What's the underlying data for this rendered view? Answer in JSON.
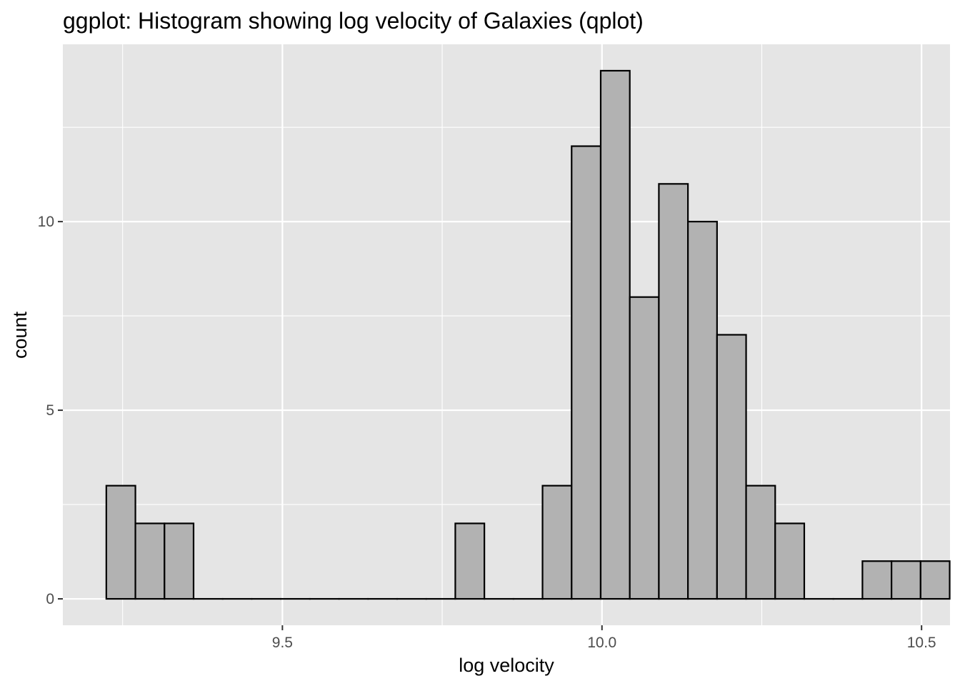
{
  "chart_data": {
    "type": "bar",
    "title": "ggplot: Histogram showing log velocity of Galaxies (qplot)",
    "xlabel": "log velocity",
    "ylabel": "count",
    "xlim": [
      9.1565,
      10.5445
    ],
    "ylim": [
      -0.7,
      14.7
    ],
    "x_ticks": [
      {
        "value": 9.5,
        "label": "9.5"
      },
      {
        "value": 10.0,
        "label": "10.0"
      },
      {
        "value": 10.5,
        "label": "10.5"
      }
    ],
    "y_ticks": [
      {
        "value": 0,
        "label": "0"
      },
      {
        "value": 5,
        "label": "5"
      },
      {
        "value": 10,
        "label": "10"
      }
    ],
    "x_minor_gridlines": [
      9.25,
      9.75,
      10.25
    ],
    "y_minor_gridlines": [
      2.5,
      7.5,
      12.5
    ],
    "grid": true,
    "bin_width": 0.0455,
    "bins_start": 9.2245,
    "counts": [
      3,
      2,
      2,
      0,
      0,
      0,
      0,
      0,
      0,
      0,
      0,
      0,
      2,
      0,
      0,
      3,
      12,
      14,
      8,
      11,
      10,
      7,
      3,
      2,
      0,
      0,
      1,
      1,
      1
    ],
    "colors": {
      "panel_background": "#e5e5e5",
      "grid": "#ffffff",
      "bar_fill": "#b2b2b2",
      "bar_outline": "#000000"
    }
  }
}
